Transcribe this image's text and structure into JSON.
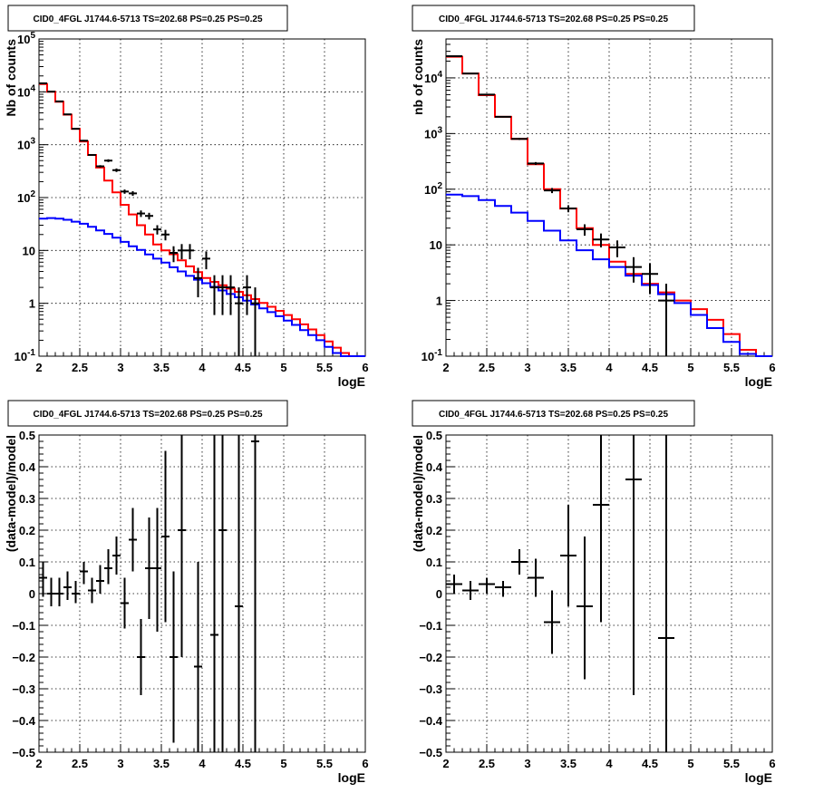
{
  "chart_data": [
    {
      "type": "line",
      "panel": "top-left",
      "title": "CID0_4FGL J1744.6-5713 TS=202.68 PS=0.25 PS=0.25",
      "xlabel": "logE",
      "ylabel": "Nb of counts",
      "xlim": [
        2,
        6
      ],
      "ylim": [
        0.1,
        100000
      ],
      "yscale": "log",
      "grid": true,
      "x_ticks": [
        "2",
        "2.5",
        "3",
        "3.5",
        "4",
        "4.5",
        "5",
        "5.5",
        "6"
      ],
      "y_ticks": [
        {
          "v": 0.1,
          "base": "10",
          "exp": "-1"
        },
        {
          "v": 1,
          "text": "1"
        },
        {
          "v": 10,
          "text": "10"
        },
        {
          "v": 100,
          "base": "10",
          "exp": "2"
        },
        {
          "v": 1000,
          "base": "10",
          "exp": "3"
        },
        {
          "v": 10000,
          "base": "10",
          "exp": "4"
        },
        {
          "v": 100000,
          "base": "10",
          "exp": "5"
        }
      ],
      "bin_width": 0.1,
      "bin_start": 2.0,
      "series": [
        {
          "kind": "hist",
          "color": "#ff0000",
          "values": [
            14000,
            10000,
            6500,
            3700,
            2000,
            1150,
            640,
            370,
            210,
            125,
            73,
            48,
            30,
            20,
            13,
            10,
            8.5,
            6.5,
            5,
            3.9,
            3.0,
            2.55,
            2.2,
            1.9,
            1.65,
            1.42,
            1.2,
            1.02,
            0.86,
            0.72,
            0.6,
            0.5,
            0.4,
            0.32,
            0.25,
            0.19,
            0.145,
            0.115,
            0.1,
            0.1
          ]
        },
        {
          "kind": "hist",
          "color": "#0000ff",
          "values": [
            40,
            41,
            40,
            38,
            35,
            32,
            28,
            24,
            20.5,
            17.5,
            14.5,
            12,
            10.2,
            8.4,
            7,
            5.9,
            4.8,
            4.0,
            3.3,
            2.8,
            2.4,
            2.05,
            1.75,
            1.5,
            1.3,
            1.12,
            0.95,
            0.8,
            0.68,
            0.57,
            0.47,
            0.39,
            0.31,
            0.25,
            0.2,
            0.15,
            0.115,
            0.1,
            0.1,
            0.1
          ]
        },
        {
          "kind": "points",
          "color": "#000000",
          "points": [
            {
              "x": 2.05,
              "y": 14500,
              "lo": 14300,
              "hi": 14700
            },
            {
              "x": 2.15,
              "y": 10100,
              "lo": 9950,
              "hi": 10250
            },
            {
              "x": 2.25,
              "y": 6600,
              "lo": 6450,
              "hi": 6750
            },
            {
              "x": 2.35,
              "y": 3750,
              "lo": 3650,
              "hi": 3850
            },
            {
              "x": 2.45,
              "y": 2000,
              "lo": 1950,
              "hi": 2050
            },
            {
              "x": 2.55,
              "y": 1190,
              "lo": 1150,
              "hi": 1230
            },
            {
              "x": 2.65,
              "y": 640,
              "lo": 615,
              "hi": 665
            },
            {
              "x": 2.75,
              "y": 390,
              "lo": 370,
              "hi": 410
            },
            {
              "x": 2.85,
              "y": 500,
              "lo": 470,
              "hi": 530
            },
            {
              "x": 2.95,
              "y": 330,
              "lo": 305,
              "hi": 355
            },
            {
              "x": 3.05,
              "y": 130,
              "lo": 118,
              "hi": 142
            },
            {
              "x": 3.15,
              "y": 120,
              "lo": 108,
              "hi": 132
            },
            {
              "x": 3.25,
              "y": 50,
              "lo": 43,
              "hi": 57
            },
            {
              "x": 3.35,
              "y": 45,
              "lo": 38.5,
              "hi": 51.5
            },
            {
              "x": 3.45,
              "y": 25,
              "lo": 20,
              "hi": 30
            },
            {
              "x": 3.55,
              "y": 20,
              "lo": 15.5,
              "hi": 24.5
            },
            {
              "x": 3.65,
              "y": 9,
              "lo": 6,
              "hi": 12
            },
            {
              "x": 3.75,
              "y": 10,
              "lo": 6.8,
              "hi": 13.2
            },
            {
              "x": 3.85,
              "y": 10,
              "lo": 6.8,
              "hi": 13.2
            },
            {
              "x": 3.95,
              "y": 3,
              "lo": 1.3,
              "hi": 4.7
            },
            {
              "x": 4.05,
              "y": 7,
              "lo": 4.4,
              "hi": 9.6
            },
            {
              "x": 4.15,
              "y": 2,
              "lo": 0.6,
              "hi": 3.4
            },
            {
              "x": 4.25,
              "y": 2,
              "lo": 0.6,
              "hi": 3.4
            },
            {
              "x": 4.35,
              "y": 2,
              "lo": 0.6,
              "hi": 3.4
            },
            {
              "x": 4.45,
              "y": 1,
              "lo": 0.1,
              "hi": 2.0
            },
            {
              "x": 4.55,
              "y": 2,
              "lo": 0.6,
              "hi": 3.4
            },
            {
              "x": 4.65,
              "y": 1,
              "lo": 0.1,
              "hi": 2.0
            }
          ]
        }
      ]
    },
    {
      "type": "line",
      "panel": "top-right",
      "title": "CID0_4FGL J1744.6-5713 TS=202.68 PS=0.25 PS=0.25",
      "xlabel": "logE",
      "ylabel": "nb of counts",
      "xlim": [
        2,
        6
      ],
      "ylim": [
        0.1,
        50000
      ],
      "yscale": "log",
      "grid": true,
      "x_ticks": [
        "2",
        "2.5",
        "3",
        "3.5",
        "4",
        "4.5",
        "5",
        "5.5",
        "6"
      ],
      "y_ticks": [
        {
          "v": 0.1,
          "base": "10",
          "exp": "-1"
        },
        {
          "v": 1,
          "text": "1"
        },
        {
          "v": 10,
          "text": "10"
        },
        {
          "v": 100,
          "base": "10",
          "exp": "2"
        },
        {
          "v": 1000,
          "base": "10",
          "exp": "3"
        },
        {
          "v": 10000,
          "base": "10",
          "exp": "4"
        }
      ],
      "bin_width": 0.2,
      "bin_start": 2.0,
      "series": [
        {
          "kind": "hist",
          "color": "#ff0000",
          "values": [
            24000,
            12000,
            4900,
            2000,
            800,
            280,
            100,
            45,
            20,
            10,
            5,
            3,
            2,
            1.4,
            1.0,
            0.7,
            0.45,
            0.25,
            0.13,
            0.1
          ]
        },
        {
          "kind": "hist",
          "color": "#0000ff",
          "values": [
            80,
            75,
            64,
            50,
            38,
            27,
            18,
            12,
            8,
            5.5,
            4,
            2.8,
            1.9,
            1.3,
            0.9,
            0.55,
            0.32,
            0.18,
            0.11,
            0.1
          ]
        },
        {
          "kind": "points",
          "color": "#000000",
          "points": [
            {
              "x": 2.1,
              "y": 24500,
              "lo": 24300,
              "hi": 24700
            },
            {
              "x": 2.3,
              "y": 12000,
              "lo": 11850,
              "hi": 12150
            },
            {
              "x": 2.5,
              "y": 5000,
              "lo": 4900,
              "hi": 5100
            },
            {
              "x": 2.7,
              "y": 2000,
              "lo": 1950,
              "hi": 2050
            },
            {
              "x": 2.9,
              "y": 800,
              "lo": 770,
              "hi": 830
            },
            {
              "x": 3.1,
              "y": 290,
              "lo": 273,
              "hi": 307
            },
            {
              "x": 3.3,
              "y": 95,
              "lo": 85,
              "hi": 105
            },
            {
              "x": 3.5,
              "y": 45,
              "lo": 38.5,
              "hi": 51.5
            },
            {
              "x": 3.7,
              "y": 19,
              "lo": 14.6,
              "hi": 23.4
            },
            {
              "x": 3.9,
              "y": 12.5,
              "lo": 9,
              "hi": 16
            },
            {
              "x": 4.1,
              "y": 9,
              "lo": 6,
              "hi": 12
            },
            {
              "x": 4.3,
              "y": 4,
              "lo": 2.1,
              "hi": 6
            },
            {
              "x": 4.5,
              "y": 3,
              "lo": 1.3,
              "hi": 4.7
            },
            {
              "x": 4.7,
              "y": 1,
              "lo": 0.1,
              "hi": 2.0
            }
          ]
        }
      ]
    },
    {
      "type": "scatter",
      "panel": "bottom-left",
      "title": "CID0_4FGL J1744.6-5713 TS=202.68 PS=0.25 PS=0.25",
      "xlabel": "logE",
      "ylabel": "(data-model)/model",
      "xlim": [
        2,
        6
      ],
      "ylim": [
        -0.5,
        0.5
      ],
      "yscale": "linear",
      "grid": true,
      "x_ticks": [
        "2",
        "2.5",
        "3",
        "3.5",
        "4",
        "4.5",
        "5",
        "5.5",
        "6"
      ],
      "y_ticks": [
        {
          "v": -0.5,
          "text": "−0.5"
        },
        {
          "v": -0.4,
          "text": "−0.4"
        },
        {
          "v": -0.3,
          "text": "−0.3"
        },
        {
          "v": -0.2,
          "text": "−0.2"
        },
        {
          "v": -0.1,
          "text": "−0.1"
        },
        {
          "v": 0,
          "text": "0"
        },
        {
          "v": 0.1,
          "text": "0.1"
        },
        {
          "v": 0.2,
          "text": "0.2"
        },
        {
          "v": 0.3,
          "text": "0.3"
        },
        {
          "v": 0.4,
          "text": "0.4"
        },
        {
          "v": 0.5,
          "text": "0.5"
        }
      ],
      "bin_width": 0.1,
      "series": [
        {
          "kind": "points",
          "color": "#000000",
          "points": [
            {
              "x": 2.05,
              "y": 0.05,
              "lo": -0.01,
              "hi": 0.1
            },
            {
              "x": 2.15,
              "y": 0.0,
              "lo": -0.04,
              "hi": 0.05
            },
            {
              "x": 2.25,
              "y": 0.0,
              "lo": -0.04,
              "hi": 0.05
            },
            {
              "x": 2.35,
              "y": 0.02,
              "lo": -0.02,
              "hi": 0.07
            },
            {
              "x": 2.45,
              "y": 0.0,
              "lo": -0.03,
              "hi": 0.04
            },
            {
              "x": 2.55,
              "y": 0.07,
              "lo": 0.03,
              "hi": 0.1
            },
            {
              "x": 2.65,
              "y": 0.01,
              "lo": -0.03,
              "hi": 0.05
            },
            {
              "x": 2.75,
              "y": 0.04,
              "lo": 0.0,
              "hi": 0.09
            },
            {
              "x": 2.85,
              "y": 0.08,
              "lo": 0.03,
              "hi": 0.14
            },
            {
              "x": 2.95,
              "y": 0.12,
              "lo": 0.06,
              "hi": 0.18
            },
            {
              "x": 3.05,
              "y": -0.03,
              "lo": -0.11,
              "hi": 0.05
            },
            {
              "x": 3.15,
              "y": 0.17,
              "lo": 0.07,
              "hi": 0.27
            },
            {
              "x": 3.25,
              "y": -0.2,
              "lo": -0.32,
              "hi": -0.08
            },
            {
              "x": 3.35,
              "y": 0.08,
              "lo": -0.08,
              "hi": 0.24
            },
            {
              "x": 3.45,
              "y": 0.08,
              "lo": -0.12,
              "hi": 0.27
            },
            {
              "x": 3.55,
              "y": 0.18,
              "lo": -0.09,
              "hi": 0.45
            },
            {
              "x": 3.65,
              "y": -0.2,
              "lo": -0.47,
              "hi": 0.07
            },
            {
              "x": 3.75,
              "y": 0.2,
              "lo": -0.2,
              "hi": 0.5
            },
            {
              "x": 3.95,
              "y": -0.23,
              "lo": -0.5,
              "hi": 0.1
            },
            {
              "x": 4.15,
              "y": -0.13,
              "lo": -0.5,
              "hi": 0.5
            },
            {
              "x": 4.25,
              "y": 0.2,
              "lo": -0.5,
              "hi": 0.5
            },
            {
              "x": 4.45,
              "y": -0.04,
              "lo": -0.5,
              "hi": 0.5
            },
            {
              "x": 4.65,
              "y": 0.48,
              "lo": -0.5,
              "hi": 0.5
            }
          ]
        }
      ]
    },
    {
      "type": "scatter",
      "panel": "bottom-right",
      "title": "CID0_4FGL J1744.6-5713 TS=202.68 PS=0.25 PS=0.25",
      "xlabel": "logE",
      "ylabel": "(data-model)/model",
      "xlim": [
        2,
        6
      ],
      "ylim": [
        -0.5,
        0.5
      ],
      "yscale": "linear",
      "grid": true,
      "x_ticks": [
        "2",
        "2.5",
        "3",
        "3.5",
        "4",
        "4.5",
        "5",
        "5.5",
        "6"
      ],
      "y_ticks": [
        {
          "v": -0.5,
          "text": "−0.5"
        },
        {
          "v": -0.4,
          "text": "−0.4"
        },
        {
          "v": -0.3,
          "text": "−0.3"
        },
        {
          "v": -0.2,
          "text": "−0.2"
        },
        {
          "v": -0.1,
          "text": "−0.1"
        },
        {
          "v": 0,
          "text": "0"
        },
        {
          "v": 0.1,
          "text": "0.1"
        },
        {
          "v": 0.2,
          "text": "0.2"
        },
        {
          "v": 0.3,
          "text": "0.3"
        },
        {
          "v": 0.4,
          "text": "0.4"
        },
        {
          "v": 0.5,
          "text": "0.5"
        }
      ],
      "bin_width": 0.2,
      "series": [
        {
          "kind": "points",
          "color": "#000000",
          "points": [
            {
              "x": 2.1,
              "y": 0.03,
              "lo": 0.0,
              "hi": 0.06
            },
            {
              "x": 2.3,
              "y": 0.01,
              "lo": -0.02,
              "hi": 0.04
            },
            {
              "x": 2.5,
              "y": 0.03,
              "lo": 0.0,
              "hi": 0.05
            },
            {
              "x": 2.7,
              "y": 0.02,
              "lo": -0.01,
              "hi": 0.04
            },
            {
              "x": 2.9,
              "y": 0.1,
              "lo": 0.06,
              "hi": 0.14
            },
            {
              "x": 3.1,
              "y": 0.05,
              "lo": -0.01,
              "hi": 0.11
            },
            {
              "x": 3.3,
              "y": -0.09,
              "lo": -0.19,
              "hi": 0.01
            },
            {
              "x": 3.5,
              "y": 0.12,
              "lo": -0.04,
              "hi": 0.28
            },
            {
              "x": 3.7,
              "y": -0.04,
              "lo": -0.27,
              "hi": 0.18
            },
            {
              "x": 3.9,
              "y": 0.28,
              "lo": -0.09,
              "hi": 0.5
            },
            {
              "x": 4.3,
              "y": 0.36,
              "lo": -0.32,
              "hi": 0.5
            },
            {
              "x": 4.7,
              "y": -0.14,
              "lo": -0.5,
              "hi": 0.5
            }
          ]
        }
      ]
    }
  ]
}
